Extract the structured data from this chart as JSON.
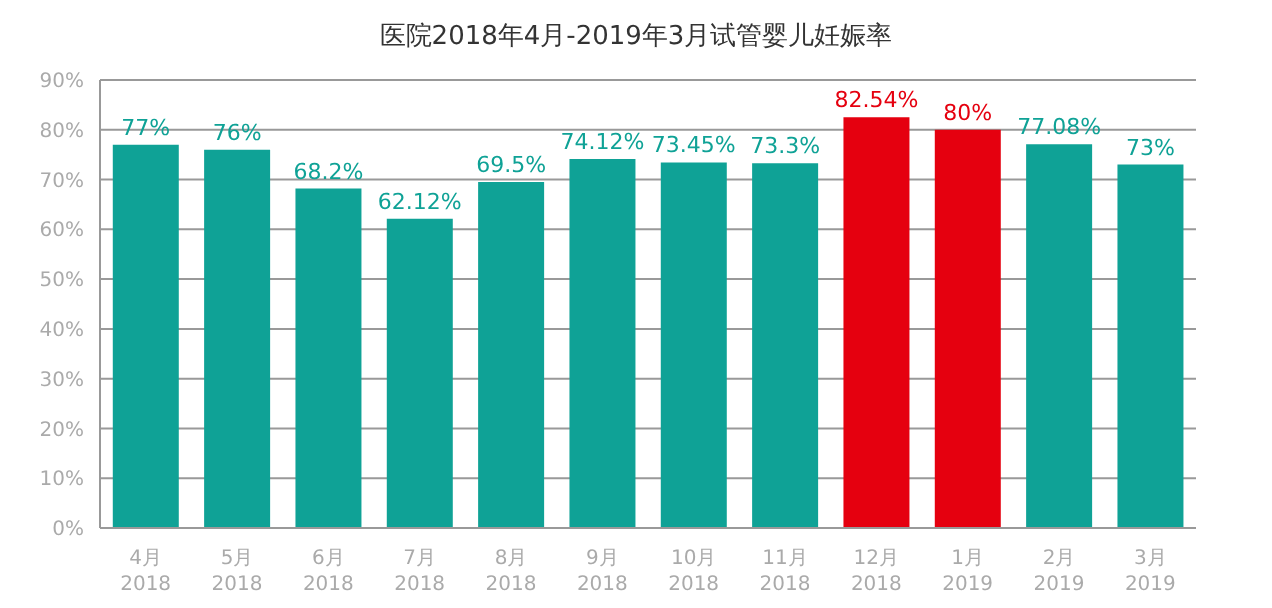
{
  "chart_data": {
    "type": "bar",
    "title": "医院2018年4月-2019年3月试管婴儿妊娠率",
    "categories": [
      "4月\n2018",
      "5月\n2018",
      "6月\n2018",
      "7月\n2018",
      "8月\n2018",
      "9月\n2018",
      "10月\n2018",
      "11月\n2018",
      "12月\n2018",
      "1月\n2019",
      "2月\n2019",
      "3月\n2019"
    ],
    "values": [
      77,
      76,
      68.2,
      62.12,
      69.5,
      74.12,
      73.45,
      73.3,
      82.54,
      80,
      77.08,
      73
    ],
    "value_labels": [
      "77%",
      "76%",
      "68.2%",
      "62.12%",
      "69.5%",
      "74.12%",
      "73.45%",
      "73.3%",
      "82.54%",
      "80%",
      "77.08%",
      "73%"
    ],
    "colors": [
      "#0fa296",
      "#0fa296",
      "#0fa296",
      "#0fa296",
      "#0fa296",
      "#0fa296",
      "#0fa296",
      "#0fa296",
      "#e5000f",
      "#e5000f",
      "#0fa296",
      "#0fa296"
    ],
    "ylim": [
      0,
      90
    ],
    "yticks": [
      {
        "value": 0,
        "label": "0%"
      },
      {
        "value": 10,
        "label": "10%"
      },
      {
        "value": 20,
        "label": "20%"
      },
      {
        "value": 30,
        "label": "30%"
      },
      {
        "value": 40,
        "label": "40%"
      },
      {
        "value": 50,
        "label": "50%"
      },
      {
        "value": 60,
        "label": "60%"
      },
      {
        "value": 70,
        "label": "70%"
      },
      {
        "value": 80,
        "label": "80%"
      },
      {
        "value": 90,
        "label": "90%"
      }
    ],
    "grid": "y"
  }
}
